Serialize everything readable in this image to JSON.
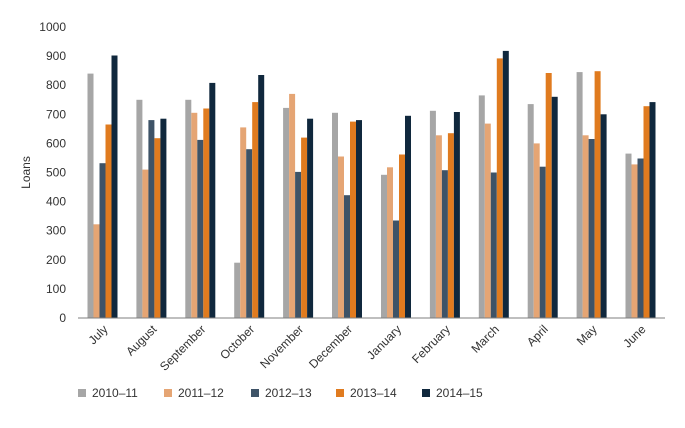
{
  "chart_data": {
    "type": "bar",
    "title": "",
    "xlabel": "",
    "ylabel": "Loans",
    "ylim": [
      0,
      1000
    ],
    "yticks": [
      0,
      100,
      200,
      300,
      400,
      500,
      600,
      700,
      800,
      900,
      1000
    ],
    "grid": false,
    "legend_position": "bottom",
    "categories": [
      "July",
      "August",
      "September",
      "October",
      "November",
      "December",
      "January",
      "February",
      "March",
      "April",
      "May",
      "June"
    ],
    "series": [
      {
        "name": "2010–11",
        "color": "#a6a6a6",
        "values": [
          840,
          750,
          750,
          190,
          722,
          705,
          492,
          712,
          765,
          735,
          845,
          565
        ]
      },
      {
        "name": "2011–12",
        "color": "#e5a574",
        "values": [
          322,
          510,
          705,
          655,
          770,
          555,
          518,
          628,
          668,
          600,
          628,
          528
        ]
      },
      {
        "name": "2012–13",
        "color": "#3e5367",
        "values": [
          532,
          680,
          612,
          580,
          502,
          422,
          335,
          508,
          500,
          520,
          615,
          548
        ]
      },
      {
        "name": "2013–14",
        "color": "#e07b1f",
        "values": [
          665,
          618,
          720,
          742,
          620,
          675,
          562,
          635,
          892,
          842,
          848,
          728
        ]
      },
      {
        "name": "2014–15",
        "color": "#10283d",
        "values": [
          902,
          685,
          808,
          835,
          685,
          680,
          695,
          708,
          918,
          760,
          700,
          742
        ]
      }
    ]
  }
}
